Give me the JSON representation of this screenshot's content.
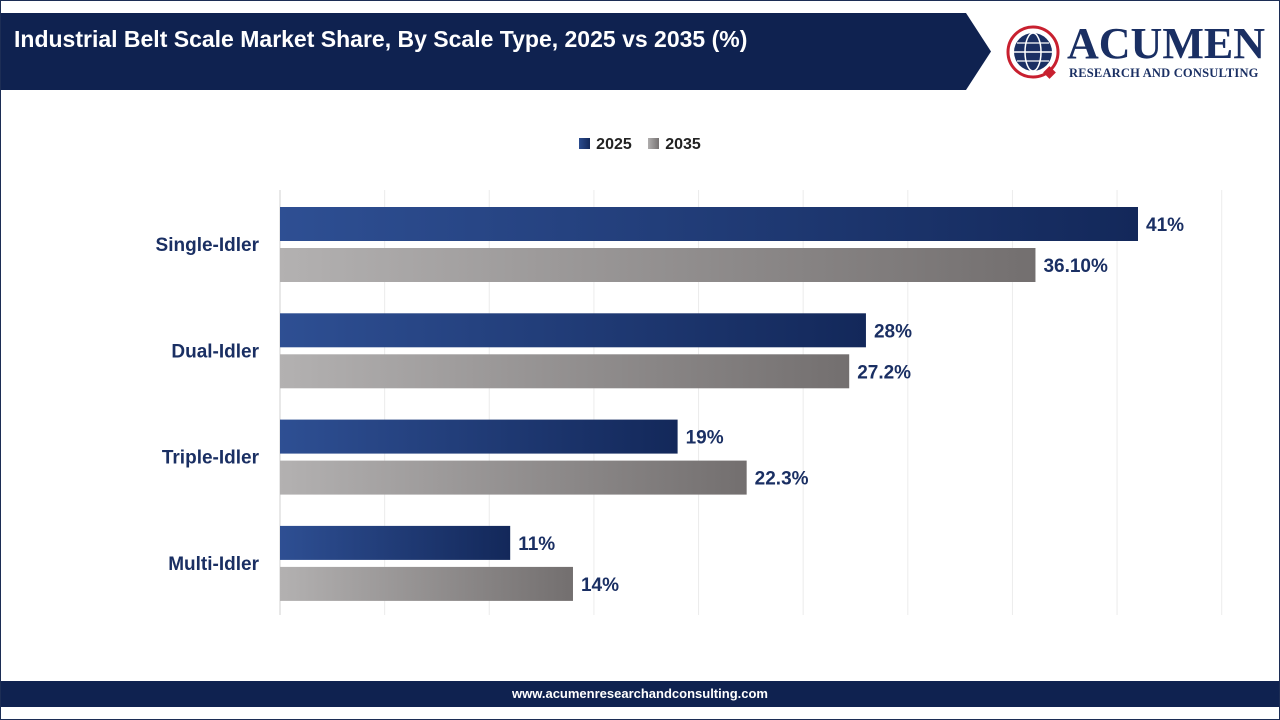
{
  "header": {
    "title": "Industrial Belt Scale Market Share, By Scale Type, 2025 vs 2035 (%)",
    "logo_name": "ACUMEN",
    "logo_tagline": "RESEARCH AND CONSULTING"
  },
  "footer": {
    "url": "www.acumenresearchandconsulting.com"
  },
  "colors": {
    "banner": "#0f2250",
    "series_2025": "#14295a",
    "series_2035": "#767272",
    "label_text": "#1a2f63"
  },
  "chart_data": {
    "type": "bar",
    "orientation": "horizontal",
    "title": "Industrial Belt Scale Market Share, By Scale Type, 2025 vs 2035 (%)",
    "categories": [
      "Single-Idler",
      "Dual-Idler",
      "Triple-Idler",
      "Multi-Idler"
    ],
    "series": [
      {
        "name": "2025",
        "values": [
          41,
          28,
          19,
          11
        ],
        "labels": [
          "41%",
          "28%",
          "19%",
          "11%"
        ]
      },
      {
        "name": "2035",
        "values": [
          36.1,
          27.2,
          22.3,
          14
        ],
        "labels": [
          "36.10%",
          "27.2%",
          "22.3%",
          "14%"
        ]
      }
    ],
    "xlim": [
      0,
      45
    ],
    "grid": true,
    "legend": "top-center"
  }
}
